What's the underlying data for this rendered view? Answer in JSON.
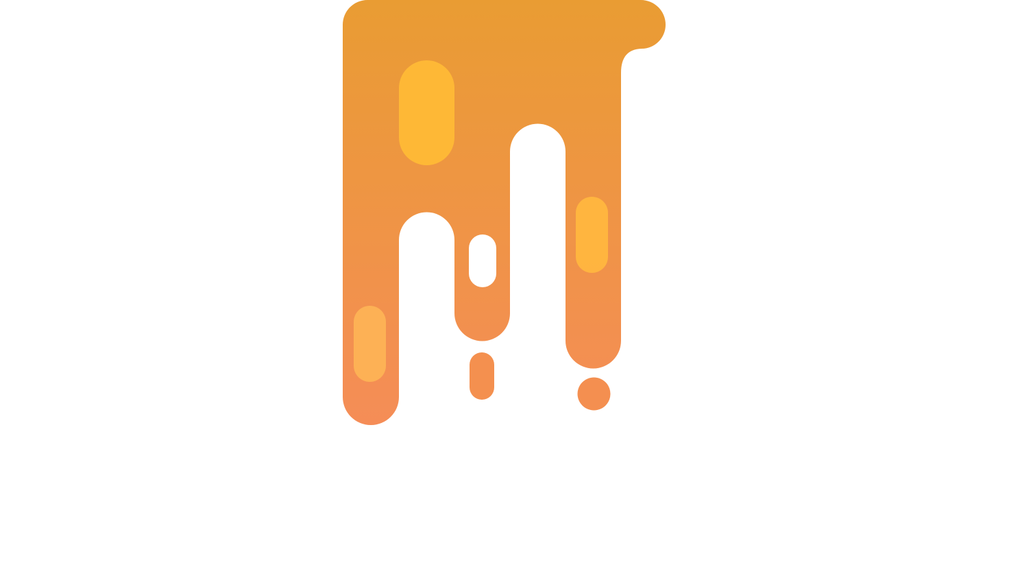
{
  "logo": {
    "name": "dripping-paint-logo",
    "icon": "drip-logo-icon",
    "colors": {
      "gradient_top": "#E99C33",
      "gradient_bottom": "#F58D57",
      "highlight_top": "#FFB936",
      "highlight_bottom": "#FDB355",
      "background": "#FFFFFF"
    }
  }
}
